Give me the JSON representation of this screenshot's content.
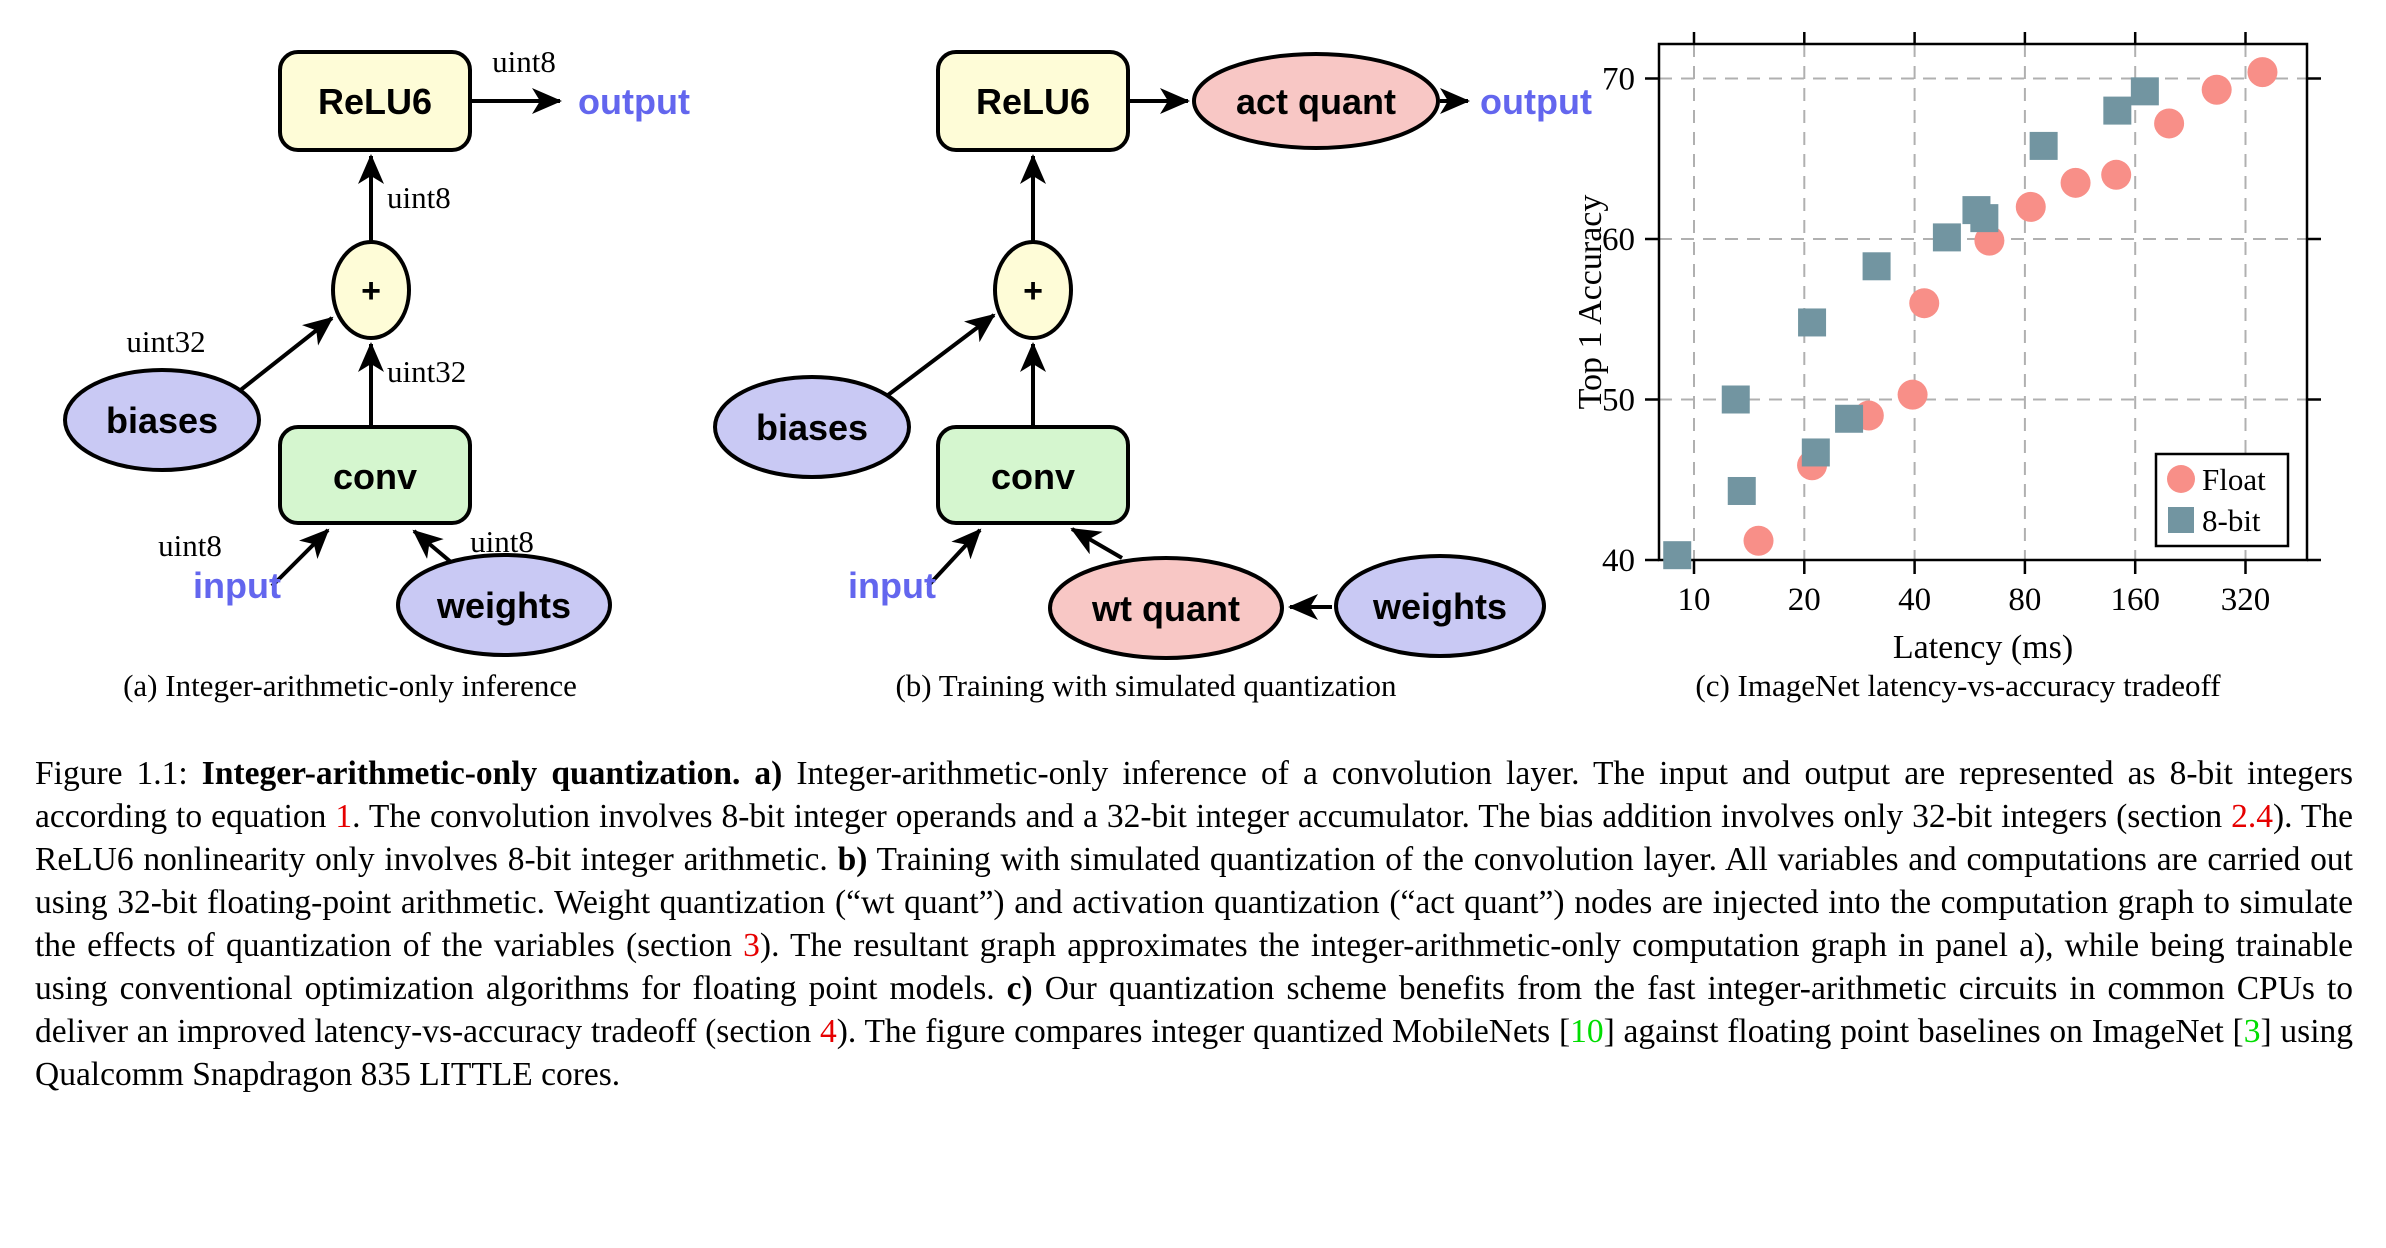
{
  "figure": {
    "panel_a": {
      "caption": "(a) Integer-arithmetic-only inference",
      "nodes": {
        "relu6": "ReLU6",
        "add": "+",
        "conv": "conv",
        "biases": "biases",
        "weights": "weights"
      },
      "io": {
        "input": "input",
        "output": "output"
      },
      "type_labels": {
        "output_edge": "uint8",
        "relu6_edge": "uint8",
        "conv_edge": "uint32",
        "biases_edge": "uint32",
        "input_edge": "uint8",
        "weights_edge": "uint8"
      }
    },
    "panel_b": {
      "caption": "(b) Training with simulated quantization",
      "nodes": {
        "relu6": "ReLU6",
        "add": "+",
        "conv": "conv",
        "biases": "biases",
        "weights": "weights",
        "wt_quant": "wt quant",
        "act_quant": "act quant"
      },
      "io": {
        "input": "input",
        "output": "output"
      }
    },
    "panel_c": {
      "caption": "(c) ImageNet latency-vs-accuracy tradeoff"
    }
  },
  "chart_data": {
    "type": "scatter",
    "title": "",
    "xlabel": "Latency (ms)",
    "ylabel": "Top 1 Accuracy",
    "x_scale": "log2",
    "xlim": [
      8,
      470
    ],
    "ylim": [
      40,
      72.2
    ],
    "x_ticks": [
      10,
      20,
      40,
      80,
      160,
      320
    ],
    "y_ticks": [
      40,
      50,
      60,
      70
    ],
    "grid": "dashed",
    "legend_position": "bottom-right",
    "series": [
      {
        "name": "Float",
        "marker": "circle",
        "color": "#f88f88",
        "points": [
          [
            15,
            41.2
          ],
          [
            21,
            45.9
          ],
          [
            30,
            49.0
          ],
          [
            39.5,
            50.3
          ],
          [
            42.5,
            56.0
          ],
          [
            64,
            59.9
          ],
          [
            83,
            62.0
          ],
          [
            110,
            63.5
          ],
          [
            142,
            64.0
          ],
          [
            198,
            67.2
          ],
          [
            267,
            69.3
          ],
          [
            356,
            70.4
          ]
        ]
      },
      {
        "name": "8-bit",
        "marker": "square",
        "color": "#7295a1",
        "points": [
          [
            9,
            40.3
          ],
          [
            13,
            50.0
          ],
          [
            13.5,
            44.3
          ],
          [
            21,
            54.8
          ],
          [
            21.5,
            46.7
          ],
          [
            26.5,
            48.8
          ],
          [
            31.5,
            58.3
          ],
          [
            49,
            60.1
          ],
          [
            59,
            61.8
          ],
          [
            62,
            61.3
          ],
          [
            90,
            65.8
          ],
          [
            143,
            68.0
          ],
          [
            170,
            69.2
          ]
        ]
      }
    ]
  },
  "caption": {
    "segments": [
      {
        "style": "plain",
        "t": "Figure 1.1: "
      },
      {
        "style": "bold",
        "t": "Integer-arithmetic-only quantization. a)"
      },
      {
        "style": "plain",
        "t": " Integer-arithmetic-only inference of a convolution layer. The input and output are represented as 8-bit integers according to equation "
      },
      {
        "style": "red",
        "t": "1"
      },
      {
        "style": "plain",
        "t": ". The convolution involves 8-bit integer operands and a 32-bit integer accumulator. The bias addition involves only 32-bit integers (section "
      },
      {
        "style": "red",
        "t": "2.4"
      },
      {
        "style": "plain",
        "t": "). The ReLU6 nonlinearity only involves 8-bit integer arithmetic. "
      },
      {
        "style": "bold",
        "t": "b)"
      },
      {
        "style": "plain",
        "t": " Training with simulated quantization of the convolution layer. All variables and computations are carried out using 32-bit floating-point arithmetic. Weight quantization (“wt quant”) and activation quantization (“act quant”) nodes are injected into the computation graph to simulate the effects of quantization of the variables (section "
      },
      {
        "style": "red",
        "t": "3"
      },
      {
        "style": "plain",
        "t": "). The resultant graph approximates the integer-arithmetic-only computation graph in panel a), while being trainable using conventional optimization algorithms for floating point models. "
      },
      {
        "style": "bold",
        "t": "c)"
      },
      {
        "style": "plain",
        "t": " Our quantization scheme benefits from the fast integer-arithmetic circuits in common CPUs to deliver an improved latency-vs-accuracy tradeoff (section "
      },
      {
        "style": "red",
        "t": "4"
      },
      {
        "style": "plain",
        "t": "). The figure compares integer quantized MobileNets ["
      },
      {
        "style": "green",
        "t": "10"
      },
      {
        "style": "plain",
        "t": "] against floating point baselines on ImageNet ["
      },
      {
        "style": "green",
        "t": "3"
      },
      {
        "style": "plain",
        "t": "] using Qualcomm Snapdragon 835 LITTLE cores."
      }
    ]
  },
  "colors": {
    "node_border": "#000000",
    "relu6_fill": "#fefcd7",
    "conv_fill": "#d5f6cf",
    "data_fill": "#c9c9f4",
    "quant_fill": "#f8c7c5",
    "io_text": "#6366ee",
    "section_ref_red": "#e60000",
    "citation_green": "#00dd00",
    "float_marker": "#f88f88",
    "bit8_marker": "#7295a1",
    "gridline": "#b0b0b0"
  }
}
